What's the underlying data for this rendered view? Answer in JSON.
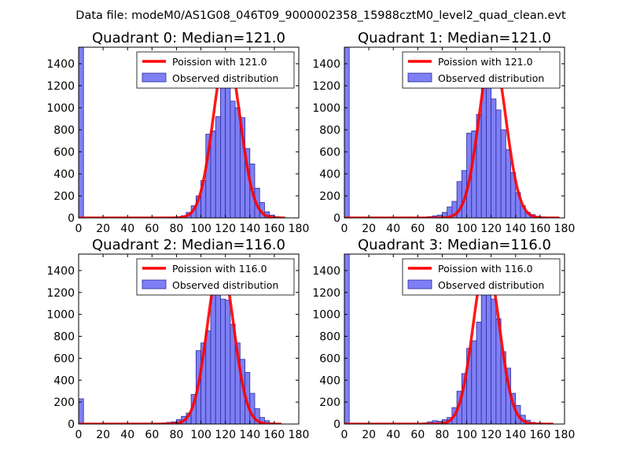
{
  "figure": {
    "suptitle": "Data file: modeM0/AS1G08_046T09_9000002358_15988cztM0_level2_quad_clean.evt"
  },
  "colors": {
    "hist_fill": "#7f7ff5",
    "hist_edge": "#2b2b99",
    "poisson_line": "#ff0000",
    "axes": "#000000",
    "background": "#ffffff"
  },
  "chart_data": [
    {
      "type": "bar",
      "title": "Quadrant 0: Median=121.0",
      "legend": [
        "Poission with 121.0",
        "Observed distribution"
      ],
      "legend_loc": "upper-right",
      "xlim": [
        0,
        180
      ],
      "ylim": [
        0,
        1550
      ],
      "xticks": [
        0,
        20,
        40,
        60,
        80,
        100,
        120,
        140,
        160,
        180
      ],
      "yticks": [
        0,
        200,
        400,
        600,
        800,
        1000,
        1200,
        1400
      ],
      "xtick_labels": [
        "0",
        "20",
        "40",
        "60",
        "80",
        "100",
        "120",
        "140",
        "160",
        "180"
      ],
      "ytick_labels": [
        "0",
        "200",
        "400",
        "600",
        "800",
        "1000",
        "1200",
        "1400"
      ],
      "bin_width": 4,
      "bin_starts": [
        0,
        72,
        76,
        80,
        84,
        88,
        92,
        96,
        100,
        104,
        108,
        112,
        116,
        120,
        124,
        128,
        132,
        136,
        140,
        144,
        148,
        152,
        156,
        160
      ],
      "counts": [
        1550,
        3,
        5,
        10,
        20,
        50,
        110,
        200,
        340,
        760,
        790,
        920,
        1290,
        1480,
        1060,
        1000,
        910,
        630,
        490,
        270,
        140,
        55,
        25,
        10
      ],
      "poisson_mean": 121.0,
      "poisson_peak": 1500,
      "curve_xrange": [
        0,
        168
      ]
    },
    {
      "type": "bar",
      "title": "Quadrant 1: Median=121.0",
      "legend": [
        "Poission with 121.0",
        "Observed distribution"
      ],
      "legend_loc": "upper-right",
      "xlim": [
        0,
        180
      ],
      "ylim": [
        0,
        1550
      ],
      "xticks": [
        0,
        20,
        40,
        60,
        80,
        100,
        120,
        140,
        160,
        180
      ],
      "yticks": [
        0,
        200,
        400,
        600,
        800,
        1000,
        1200,
        1400
      ],
      "xtick_labels": [
        "0",
        "20",
        "40",
        "60",
        "80",
        "100",
        "120",
        "140",
        "160",
        "180"
      ],
      "ytick_labels": [
        "0",
        "200",
        "400",
        "600",
        "800",
        "1000",
        "1200",
        "1400"
      ],
      "bin_width": 4,
      "bin_starts": [
        0,
        64,
        68,
        72,
        76,
        80,
        84,
        88,
        92,
        96,
        100,
        104,
        108,
        112,
        116,
        120,
        124,
        128,
        132,
        136,
        140,
        144,
        148,
        152,
        156,
        160
      ],
      "counts": [
        1550,
        5,
        12,
        18,
        25,
        50,
        100,
        150,
        330,
        430,
        770,
        790,
        940,
        1280,
        1490,
        1080,
        980,
        800,
        620,
        410,
        230,
        110,
        50,
        30,
        15,
        5
      ],
      "poisson_mean": 121.0,
      "poisson_peak": 1500,
      "curve_xrange": [
        0,
        175
      ]
    },
    {
      "type": "bar",
      "title": "Quadrant 2: Median=116.0",
      "legend": [
        "Poission with 116.0",
        "Observed distribution"
      ],
      "legend_loc": "upper-right",
      "xlim": [
        0,
        180
      ],
      "ylim": [
        0,
        1550
      ],
      "xticks": [
        0,
        20,
        40,
        60,
        80,
        100,
        120,
        140,
        160,
        180
      ],
      "yticks": [
        0,
        200,
        400,
        600,
        800,
        1000,
        1200,
        1400
      ],
      "xtick_labels": [
        "0",
        "20",
        "40",
        "60",
        "80",
        "100",
        "120",
        "140",
        "160",
        "180"
      ],
      "ytick_labels": [
        "0",
        "200",
        "400",
        "600",
        "800",
        "1000",
        "1200",
        "1400"
      ],
      "bin_width": 4,
      "bin_starts": [
        0,
        64,
        68,
        72,
        76,
        80,
        84,
        88,
        92,
        96,
        100,
        104,
        108,
        112,
        116,
        120,
        124,
        128,
        132,
        136,
        140,
        144,
        148,
        152,
        156
      ],
      "counts": [
        230,
        5,
        10,
        15,
        20,
        40,
        70,
        100,
        270,
        670,
        740,
        850,
        1360,
        1470,
        1140,
        1130,
        910,
        740,
        590,
        470,
        280,
        140,
        60,
        30,
        10
      ],
      "poisson_mean": 116.0,
      "poisson_peak": 1480,
      "curve_xrange": [
        0,
        165
      ]
    },
    {
      "type": "bar",
      "title": "Quadrant 3: Median=116.0",
      "legend": [
        "Poission with 116.0",
        "Observed distribution"
      ],
      "legend_loc": "upper-right",
      "xlim": [
        0,
        180
      ],
      "ylim": [
        0,
        1550
      ],
      "xticks": [
        0,
        20,
        40,
        60,
        80,
        100,
        120,
        140,
        160,
        180
      ],
      "yticks": [
        0,
        200,
        400,
        600,
        800,
        1000,
        1200,
        1400
      ],
      "xtick_labels": [
        "0",
        "20",
        "40",
        "60",
        "80",
        "100",
        "120",
        "140",
        "160",
        "180"
      ],
      "ytick_labels": [
        "0",
        "200",
        "400",
        "600",
        "800",
        "1000",
        "1200",
        "1400"
      ],
      "bin_width": 4,
      "bin_starts": [
        0,
        64,
        68,
        72,
        76,
        80,
        84,
        88,
        92,
        96,
        100,
        104,
        108,
        112,
        116,
        120,
        124,
        128,
        132,
        136,
        140,
        144,
        148,
        152,
        156,
        160
      ],
      "counts": [
        1550,
        10,
        20,
        30,
        25,
        40,
        60,
        150,
        300,
        460,
        690,
        760,
        930,
        1300,
        1480,
        1140,
        960,
        660,
        510,
        280,
        170,
        80,
        35,
        15,
        8,
        3
      ],
      "poisson_mean": 116.0,
      "poisson_peak": 1480,
      "curve_xrange": [
        0,
        170
      ]
    }
  ]
}
